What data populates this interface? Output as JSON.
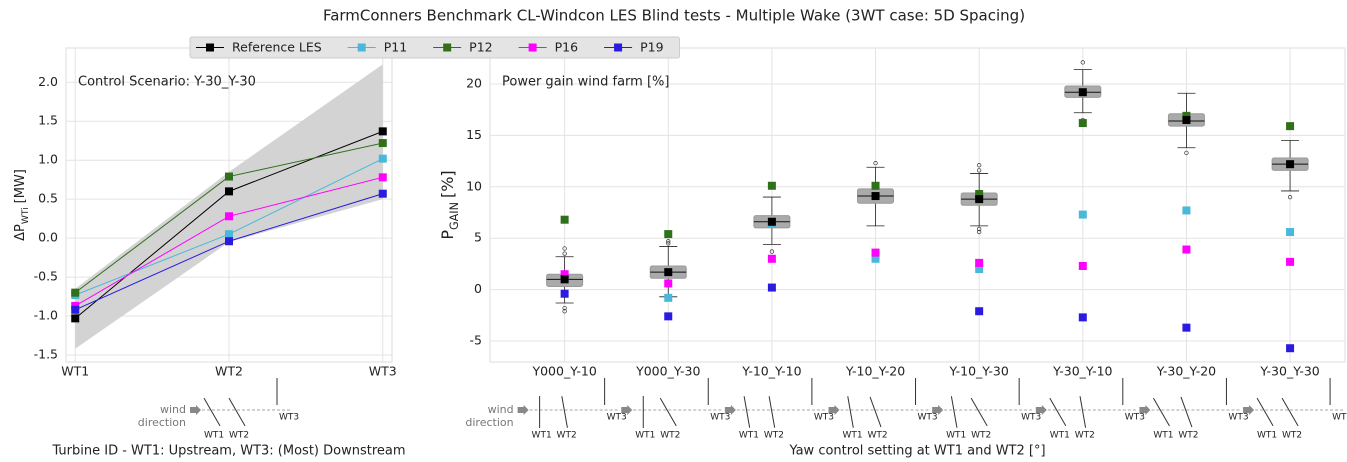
{
  "title": "FarmConners Benchmark CL-Windcon LES Blind tests - Multiple Wake (3WT case: 5D Spacing)",
  "turbine_diagram": {
    "wind_label": [
      "wind",
      "direction"
    ],
    "turbines": [
      "WT1",
      "WT2",
      "WT3"
    ]
  },
  "chart_data": [
    {
      "type": "line",
      "annotation": "Control Scenario: Y-30_Y-30",
      "ylabel": {
        "main": "ΔP",
        "sub": "WTi",
        "unit": "[MW]"
      },
      "xlabel": "Turbine ID - WT1: Upstream, WT3: (Most) Downstream",
      "categories": [
        "WT1",
        "WT2",
        "WT3"
      ],
      "ylim": [
        -1.59,
        2.44
      ],
      "yticks": [
        -1.5,
        {
          "value": -1,
          "label": "-1.0"
        },
        -0.5,
        {
          "value": 0,
          "label": "0.0"
        },
        0.5,
        {
          "value": 1,
          "label": "1.0"
        },
        1.5,
        {
          "value": 2,
          "label": "2.0"
        }
      ],
      "grid": true,
      "band": {
        "color": "#d3d3d3",
        "lower": [
          -1.42,
          -0.05,
          0.5
        ],
        "upper": [
          -0.65,
          0.85,
          2.23
        ]
      },
      "series": [
        {
          "name": "Reference LES",
          "color": "#000000",
          "values": [
            -1.03,
            0.6,
            1.37
          ]
        },
        {
          "name": "P11",
          "color": "#4ab8d8",
          "values": [
            -0.73,
            0.05,
            1.02
          ]
        },
        {
          "name": "P12",
          "color": "#2f7019",
          "values": [
            -0.7,
            0.79,
            1.22
          ]
        },
        {
          "name": "P16",
          "color": "#ff00ff",
          "values": [
            -0.87,
            0.28,
            0.78
          ]
        },
        {
          "name": "P19",
          "color": "#2b1be0",
          "values": [
            -0.92,
            -0.04,
            0.57
          ]
        }
      ]
    },
    {
      "type": "box",
      "annotation": "Power gain wind farm [%]",
      "ylabel": {
        "main": "P",
        "sub": "GAIN",
        "unit": "[%]"
      },
      "xlabel": "Yaw control setting at WT1 and WT2 [°]",
      "categories": [
        "Y000_Y-10",
        "Y000_Y-30",
        "Y-10_Y-10",
        "Y-10_Y-20",
        "Y-10_Y-30",
        "Y-30_Y-10",
        "Y-30_Y-20",
        "Y-30_Y-30"
      ],
      "ylim": [
        -7.04,
        23.5
      ],
      "yticks": [
        -5,
        0,
        5,
        10,
        15,
        20
      ],
      "grid": true,
      "box_color": "#aaaaaa",
      "boxes": [
        {
          "whislo": -1.3,
          "q1": 0.3,
          "med": 1.0,
          "q3": 1.5,
          "whishi": 3.2,
          "fliers": [
            3.5,
            4.0,
            -1.8,
            -2.1
          ]
        },
        {
          "whislo": -0.7,
          "q1": 1.1,
          "med": 1.7,
          "q3": 2.3,
          "whishi": 4.2,
          "fliers": [
            4.5,
            4.7
          ]
        },
        {
          "whislo": 4.4,
          "q1": 6.0,
          "med": 6.6,
          "q3": 7.2,
          "whishi": 9.0,
          "fliers": [
            3.7
          ]
        },
        {
          "whislo": 6.2,
          "q1": 8.4,
          "med": 9.1,
          "q3": 9.8,
          "whishi": 11.9,
          "fliers": [
            12.3
          ]
        },
        {
          "whislo": 6.2,
          "q1": 8.2,
          "med": 8.8,
          "q3": 9.4,
          "whishi": 11.3,
          "fliers": [
            12.1,
            11.6,
            5.6,
            5.9
          ]
        },
        {
          "whislo": 17.2,
          "q1": 18.7,
          "med": 19.2,
          "q3": 19.8,
          "whishi": 21.4,
          "fliers": [
            22.1,
            16.5
          ]
        },
        {
          "whislo": 13.8,
          "q1": 15.9,
          "med": 16.4,
          "q3": 17.1,
          "whishi": 19.1,
          "fliers": [
            13.3
          ]
        },
        {
          "whislo": 9.6,
          "q1": 11.6,
          "med": 12.2,
          "q3": 12.8,
          "whishi": 14.5,
          "fliers": [
            9.0
          ]
        }
      ],
      "series": [
        {
          "values": [
            1.0,
            1.7,
            6.6,
            9.1,
            8.8,
            19.2,
            16.5,
            12.2
          ]
        },
        {
          "values": [
            1.2,
            -0.8,
            6.4,
            3.0,
            2.0,
            7.3,
            7.7,
            5.6
          ]
        },
        {
          "values": [
            6.8,
            5.4,
            10.1,
            10.1,
            9.3,
            16.2,
            16.9,
            15.9
          ]
        },
        {
          "values": [
            1.5,
            0.6,
            3.0,
            3.6,
            2.6,
            2.3,
            3.9,
            2.7
          ]
        },
        {
          "values": [
            -0.4,
            -2.6,
            0.2,
            null,
            -2.1,
            -2.7,
            -3.7,
            -5.7
          ]
        }
      ]
    }
  ]
}
